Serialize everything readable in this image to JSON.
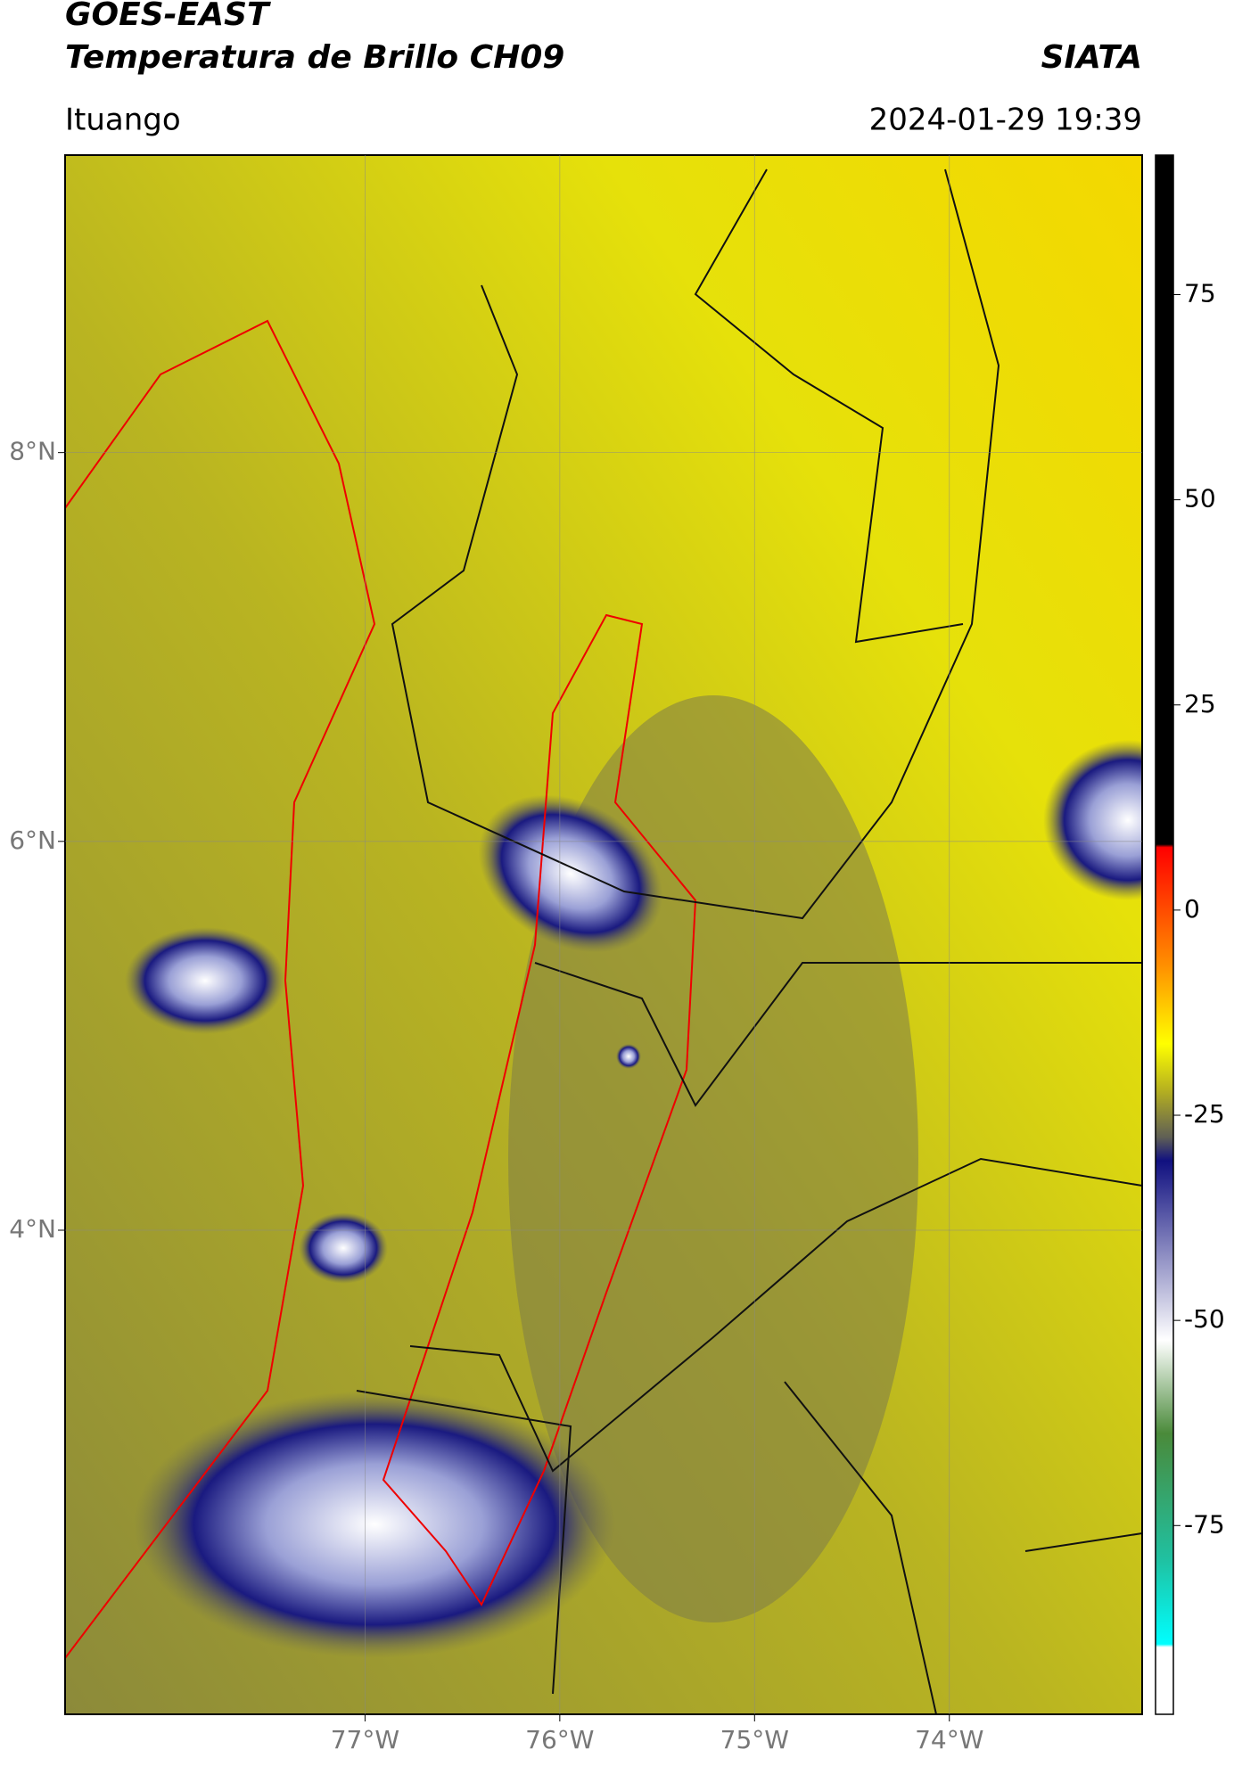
{
  "header": {
    "title": "GOES-EAST",
    "subtitle": "Temperatura de Brillo CH09",
    "source": "SIATA",
    "location": "Ituango",
    "datetime": "2024-01-29 19:39"
  },
  "map": {
    "xlim": [
      -78.54,
      -73.01
    ],
    "ylim": [
      1.51,
      9.53
    ],
    "xticks": [
      {
        "value": -77,
        "label": "77°W"
      },
      {
        "value": -76,
        "label": "76°W"
      },
      {
        "value": -75,
        "label": "75°W"
      },
      {
        "value": -74,
        "label": "74°W"
      }
    ],
    "yticks": [
      {
        "value": 8,
        "label": "8°N"
      },
      {
        "value": 6,
        "label": "6°N"
      },
      {
        "value": 4,
        "label": "4°N"
      }
    ],
    "grid": true
  },
  "colorbar": {
    "lim": [
      -98,
      92
    ],
    "ticks": [
      75,
      50,
      25,
      0,
      -25,
      -50,
      -75
    ]
  }
}
